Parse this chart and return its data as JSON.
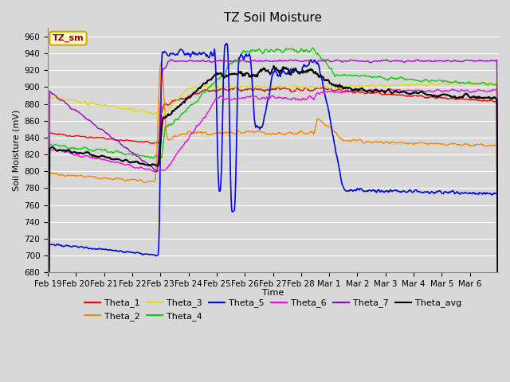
{
  "title": "TZ Soil Moisture",
  "ylabel": "Soil Moisture (mV)",
  "xlabel": "Time",
  "ylim": [
    680,
    970
  ],
  "yticks": [
    680,
    700,
    720,
    740,
    760,
    780,
    800,
    820,
    840,
    860,
    880,
    900,
    920,
    940,
    960
  ],
  "bg_color": "#d8d8d8",
  "plot_bg_color": "#d8d8d8",
  "grid_color": "white",
  "legend_label": "TZ_sm",
  "series_colors": {
    "Theta_1": "#ff0000",
    "Theta_2": "#ff8800",
    "Theta_3": "#dddd00",
    "Theta_4": "#00cc00",
    "Theta_5": "#0000ff",
    "Theta_6": "#ff00ff",
    "Theta_7": "#9900cc",
    "Theta_avg": "#000000"
  },
  "x_tick_labels": [
    "Feb 19",
    "Feb 20",
    "Feb 21",
    "Feb 22",
    "Feb 23",
    "Feb 24",
    "Feb 25",
    "Feb 26",
    "Feb 27",
    "Feb 28",
    "Mar 1",
    "Mar 2",
    "Mar 3",
    "Mar 4",
    "Mar 5",
    "Mar 6"
  ],
  "n_days": 16
}
